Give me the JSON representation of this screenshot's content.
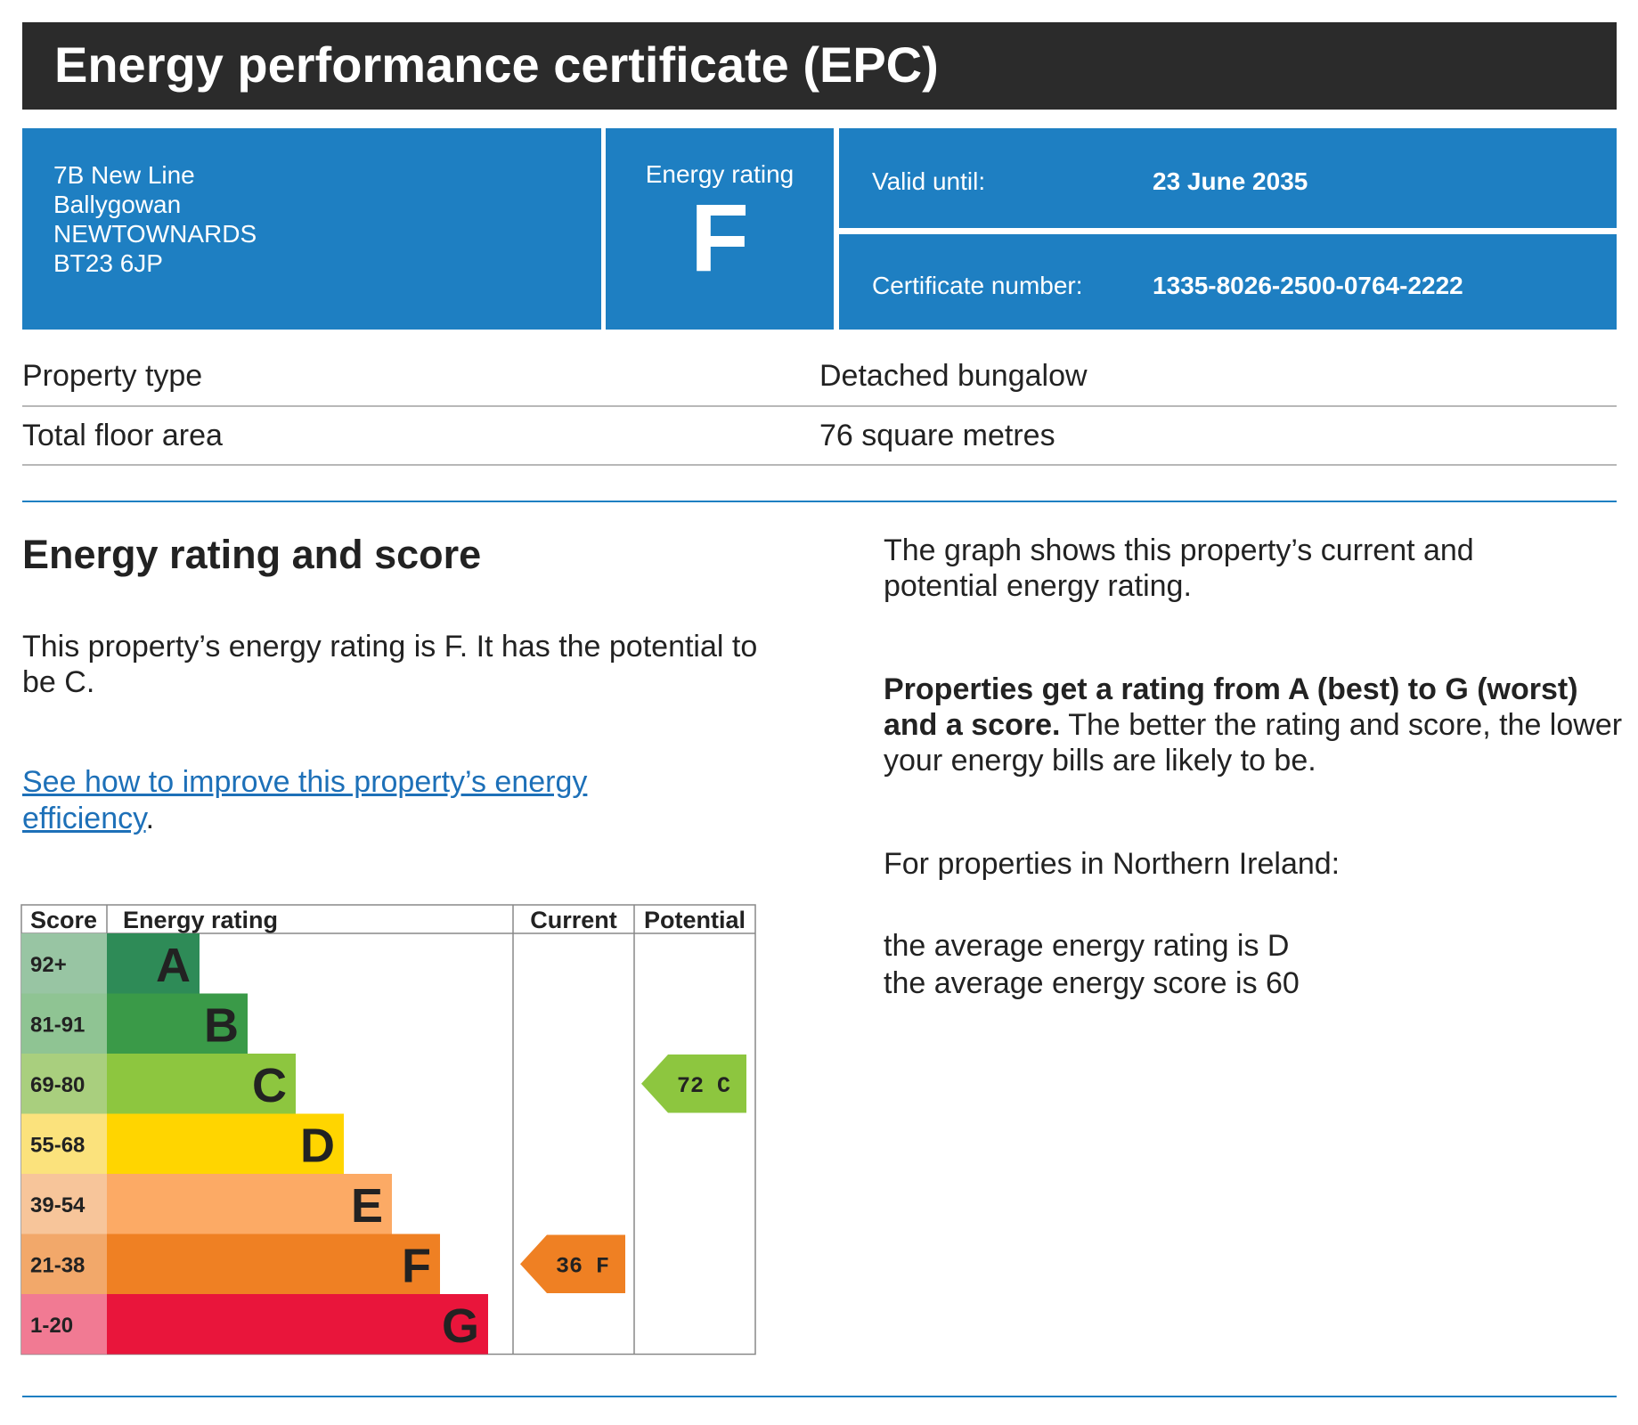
{
  "header": {
    "title": "Energy performance certificate (EPC)"
  },
  "summary": {
    "address_lines": [
      "7B New Line",
      "Ballygowan",
      "NEWTOWNARDS",
      "BT23 6JP"
    ],
    "energy_rating_label": "Energy rating",
    "energy_rating_letter": "F",
    "valid_until_label": "Valid until:",
    "valid_until_value": "23 June 2035",
    "certificate_number_label": "Certificate number:",
    "certificate_number_value": "1335-8026-2500-0764-2222"
  },
  "property": {
    "type_label": "Property type",
    "type_value": "Detached bungalow",
    "floor_area_label": "Total floor area",
    "floor_area_value": "76 square metres"
  },
  "section": {
    "heading": "Energy rating and score",
    "rating_sentence": "This property’s energy rating is F. It has the potential to be C.",
    "link_text": "See how to improve this property’s energy efficiency",
    "link_suffix": ".",
    "graph_note": "The graph shows this property’s current and potential energy rating.",
    "scale_bold": "Properties get a rating from A (best) to G (worst) and a score.",
    "scale_rest": " The better the rating and score, the lower your energy bills are likely to be.",
    "ni_intro": "For properties in Northern Ireland:",
    "ni_avg_rating": "the average energy rating is D",
    "ni_avg_score": "the average energy score is 60"
  },
  "chart_data": {
    "type": "table",
    "headers": {
      "score": "Score",
      "rating": "Energy rating",
      "current": "Current",
      "potential": "Potential"
    },
    "bands": [
      {
        "letter": "A",
        "range": "92+",
        "color": "#2e8b57",
        "score_bg": "#98c5a3"
      },
      {
        "letter": "B",
        "range": "81-91",
        "color": "#3a9a48",
        "score_bg": "#8fc493"
      },
      {
        "letter": "C",
        "range": "69-80",
        "color": "#8dc63f",
        "score_bg": "#a9cf7e"
      },
      {
        "letter": "D",
        "range": "55-68",
        "color": "#ffd500",
        "score_bg": "#fbe27c"
      },
      {
        "letter": "E",
        "range": "39-54",
        "color": "#fcaa65",
        "score_bg": "#f7c59a"
      },
      {
        "letter": "F",
        "range": "21-38",
        "color": "#ef8023",
        "score_bg": "#f2a86a"
      },
      {
        "letter": "G",
        "range": "1-20",
        "color": "#e9153b",
        "score_bg": "#f17a93"
      }
    ],
    "current": {
      "score": 36,
      "letter": "F",
      "label": "36  F",
      "color": "#ef8023"
    },
    "potential": {
      "score": 72,
      "letter": "C",
      "label": "72  C",
      "color": "#8dc63f"
    }
  }
}
